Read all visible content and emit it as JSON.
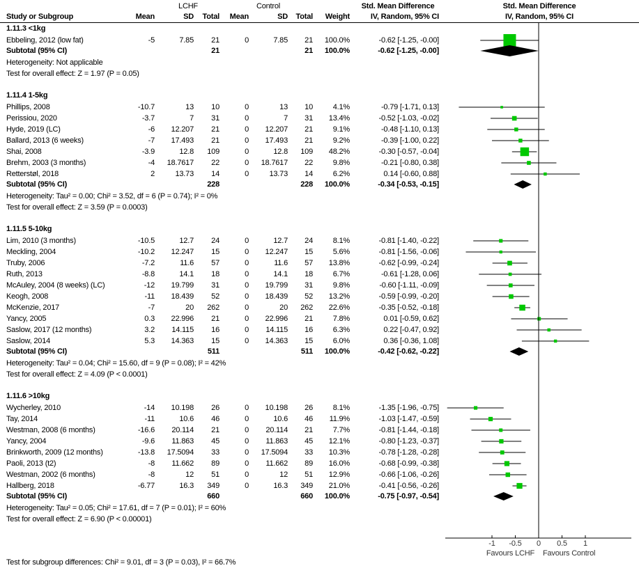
{
  "chart_data": {
    "type": "forest",
    "headers": {
      "lchf": "LCHF",
      "control": "Control",
      "smd_text": "Std. Mean Difference",
      "smd_method_text": "IV, Random, 95% CI",
      "smd_plot": "Std. Mean Difference",
      "smd_method_plot": "IV, Random, 95% CI",
      "study": "Study or Subgroup",
      "mean": "Mean",
      "sd": "SD",
      "total": "Total",
      "mean2": "Mean",
      "sd2": "SD",
      "total2": "Total",
      "weight": "Weight"
    },
    "groups": [
      {
        "title": "1.11.3 <1kg",
        "studies": [
          {
            "name": "Ebbeling, 2012 (low fat)",
            "m1": "-5",
            "sd1": "7.85",
            "n1": "21",
            "m2": "0",
            "sd2": "7.85",
            "n2": "21",
            "weight": "100.0%",
            "ci": "-0.62 [-1.25, -0.00]",
            "est": -0.62,
            "lo": -1.25,
            "hi": 0.0,
            "w": 100
          }
        ],
        "subtotal": {
          "label": "Subtotal (95% CI)",
          "n1": "21",
          "n2": "21",
          "weight": "100.0%",
          "ci": "-0.62 [-1.25, -0.00]",
          "est": -0.62,
          "lo": -1.25,
          "hi": 0.0
        },
        "heterogeneity": "Heterogeneity: Not applicable",
        "overall": "Test for overall effect: Z = 1.97 (P = 0.05)"
      },
      {
        "title": "1.11.4 1-5kg",
        "studies": [
          {
            "name": "Phillips, 2008",
            "m1": "-10.7",
            "sd1": "13",
            "n1": "10",
            "m2": "0",
            "sd2": "13",
            "n2": "10",
            "weight": "4.1%",
            "ci": "-0.79 [-1.71, 0.13]",
            "est": -0.79,
            "lo": -1.71,
            "hi": 0.13,
            "w": 4.1
          },
          {
            "name": "Perissiou, 2020",
            "m1": "-3.7",
            "sd1": "7",
            "n1": "31",
            "m2": "0",
            "sd2": "7",
            "n2": "31",
            "weight": "13.4%",
            "ci": "-0.52 [-1.03, -0.02]",
            "est": -0.52,
            "lo": -1.03,
            "hi": -0.02,
            "w": 13.4
          },
          {
            "name": "Hyde, 2019 (LC)",
            "m1": "-6",
            "sd1": "12.207",
            "n1": "21",
            "m2": "0",
            "sd2": "12.207",
            "n2": "21",
            "weight": "9.1%",
            "ci": "-0.48 [-1.10, 0.13]",
            "est": -0.48,
            "lo": -1.1,
            "hi": 0.13,
            "w": 9.1
          },
          {
            "name": "Ballard, 2013 (6 weeks)",
            "m1": "-7",
            "sd1": "17.493",
            "n1": "21",
            "m2": "0",
            "sd2": "17.493",
            "n2": "21",
            "weight": "9.2%",
            "ci": "-0.39 [-1.00, 0.22]",
            "est": -0.39,
            "lo": -1.0,
            "hi": 0.22,
            "w": 9.2
          },
          {
            "name": "Shai, 2008",
            "m1": "-3.9",
            "sd1": "12.8",
            "n1": "109",
            "m2": "0",
            "sd2": "12.8",
            "n2": "109",
            "weight": "48.2%",
            "ci": "-0.30 [-0.57, -0.04]",
            "est": -0.3,
            "lo": -0.57,
            "hi": -0.04,
            "w": 48.2
          },
          {
            "name": "Brehm, 2003 (3 months)",
            "m1": "-4",
            "sd1": "18.7617",
            "n1": "22",
            "m2": "0",
            "sd2": "18.7617",
            "n2": "22",
            "weight": "9.8%",
            "ci": "-0.21 [-0.80, 0.38]",
            "est": -0.21,
            "lo": -0.8,
            "hi": 0.38,
            "w": 9.8
          },
          {
            "name": "Retterstøl, 2018",
            "m1": "2",
            "sd1": "13.73",
            "n1": "14",
            "m2": "0",
            "sd2": "13.73",
            "n2": "14",
            "weight": "6.2%",
            "ci": "0.14 [-0.60, 0.88]",
            "est": 0.14,
            "lo": -0.6,
            "hi": 0.88,
            "w": 6.2
          }
        ],
        "subtotal": {
          "label": "Subtotal (95% CI)",
          "n1": "228",
          "n2": "228",
          "weight": "100.0%",
          "ci": "-0.34 [-0.53, -0.15]",
          "est": -0.34,
          "lo": -0.53,
          "hi": -0.15
        },
        "heterogeneity": "Heterogeneity: Tau² = 0.00; Chi² = 3.52, df = 6 (P = 0.74); I² = 0%",
        "overall": "Test for overall effect: Z = 3.59 (P = 0.0003)"
      },
      {
        "title": "1.11.5 5-10kg",
        "studies": [
          {
            "name": "Lim, 2010 (3 months)",
            "m1": "-10.5",
            "sd1": "12.7",
            "n1": "24",
            "m2": "0",
            "sd2": "12.7",
            "n2": "24",
            "weight": "8.1%",
            "ci": "-0.81 [-1.40, -0.22]",
            "est": -0.81,
            "lo": -1.4,
            "hi": -0.22,
            "w": 8.1
          },
          {
            "name": "Meckling, 2004",
            "m1": "-10.2",
            "sd1": "12.247",
            "n1": "15",
            "m2": "0",
            "sd2": "12.247",
            "n2": "15",
            "weight": "5.6%",
            "ci": "-0.81 [-1.56, -0.06]",
            "est": -0.81,
            "lo": -1.56,
            "hi": -0.06,
            "w": 5.6
          },
          {
            "name": "Truby, 2006",
            "m1": "-7.2",
            "sd1": "11.6",
            "n1": "57",
            "m2": "0",
            "sd2": "11.6",
            "n2": "57",
            "weight": "13.8%",
            "ci": "-0.62 [-0.99, -0.24]",
            "est": -0.62,
            "lo": -0.99,
            "hi": -0.24,
            "w": 13.8
          },
          {
            "name": "Ruth, 2013",
            "m1": "-8.8",
            "sd1": "14.1",
            "n1": "18",
            "m2": "0",
            "sd2": "14.1",
            "n2": "18",
            "weight": "6.7%",
            "ci": "-0.61 [-1.28, 0.06]",
            "est": -0.61,
            "lo": -1.28,
            "hi": 0.06,
            "w": 6.7
          },
          {
            "name": "McAuley, 2004 (8 weeks) (LC)",
            "m1": "-12",
            "sd1": "19.799",
            "n1": "31",
            "m2": "0",
            "sd2": "19.799",
            "n2": "31",
            "weight": "9.8%",
            "ci": "-0.60 [-1.11, -0.09]",
            "est": -0.6,
            "lo": -1.11,
            "hi": -0.09,
            "w": 9.8
          },
          {
            "name": "Keogh, 2008",
            "m1": "-11",
            "sd1": "18.439",
            "n1": "52",
            "m2": "0",
            "sd2": "18.439",
            "n2": "52",
            "weight": "13.2%",
            "ci": "-0.59 [-0.99, -0.20]",
            "est": -0.59,
            "lo": -0.99,
            "hi": -0.2,
            "w": 13.2
          },
          {
            "name": "McKenzie, 2017",
            "m1": "-7",
            "sd1": "20",
            "n1": "262",
            "m2": "0",
            "sd2": "20",
            "n2": "262",
            "weight": "22.6%",
            "ci": "-0.35 [-0.52, -0.18]",
            "est": -0.35,
            "lo": -0.52,
            "hi": -0.18,
            "w": 22.6
          },
          {
            "name": "Yancy, 2005",
            "m1": "0.3",
            "sd1": "22.996",
            "n1": "21",
            "m2": "0",
            "sd2": "22.996",
            "n2": "21",
            "weight": "7.8%",
            "ci": "0.01 [-0.59, 0.62]",
            "est": 0.01,
            "lo": -0.59,
            "hi": 0.62,
            "w": 7.8
          },
          {
            "name": "Saslow, 2017 (12 months)",
            "m1": "3.2",
            "sd1": "14.115",
            "n1": "16",
            "m2": "0",
            "sd2": "14.115",
            "n2": "16",
            "weight": "6.3%",
            "ci": "0.22 [-0.47, 0.92]",
            "est": 0.22,
            "lo": -0.47,
            "hi": 0.92,
            "w": 6.3
          },
          {
            "name": "Saslow, 2014",
            "m1": "5.3",
            "sd1": "14.363",
            "n1": "15",
            "m2": "0",
            "sd2": "14.363",
            "n2": "15",
            "weight": "6.0%",
            "ci": "0.36 [-0.36, 1.08]",
            "est": 0.36,
            "lo": -0.36,
            "hi": 1.08,
            "w": 6.0
          }
        ],
        "subtotal": {
          "label": "Subtotal (95% CI)",
          "n1": "511",
          "n2": "511",
          "weight": "100.0%",
          "ci": "-0.42 [-0.62, -0.22]",
          "est": -0.42,
          "lo": -0.62,
          "hi": -0.22
        },
        "heterogeneity": "Heterogeneity: Tau² = 0.04; Chi² = 15.60, df = 9 (P = 0.08); I² = 42%",
        "overall": "Test for overall effect: Z = 4.09 (P < 0.0001)"
      },
      {
        "title": "1.11.6 >10kg",
        "studies": [
          {
            "name": "Wycherley, 2010",
            "m1": "-14",
            "sd1": "10.198",
            "n1": "26",
            "m2": "0",
            "sd2": "10.198",
            "n2": "26",
            "weight": "8.1%",
            "ci": "-1.35 [-1.96, -0.75]",
            "est": -1.35,
            "lo": -1.96,
            "hi": -0.75,
            "w": 8.1
          },
          {
            "name": "Tay, 2014",
            "m1": "-11",
            "sd1": "10.6",
            "n1": "46",
            "m2": "0",
            "sd2": "10.6",
            "n2": "46",
            "weight": "11.9%",
            "ci": "-1.03 [-1.47, -0.59]",
            "est": -1.03,
            "lo": -1.47,
            "hi": -0.59,
            "w": 11.9
          },
          {
            "name": "Westman, 2008 (6 months)",
            "m1": "-16.6",
            "sd1": "20.114",
            "n1": "21",
            "m2": "0",
            "sd2": "20.114",
            "n2": "21",
            "weight": "7.7%",
            "ci": "-0.81 [-1.44, -0.18]",
            "est": -0.81,
            "lo": -1.44,
            "hi": -0.18,
            "w": 7.7
          },
          {
            "name": "Yancy, 2004",
            "m1": "-9.6",
            "sd1": "11.863",
            "n1": "45",
            "m2": "0",
            "sd2": "11.863",
            "n2": "45",
            "weight": "12.1%",
            "ci": "-0.80 [-1.23, -0.37]",
            "est": -0.8,
            "lo": -1.23,
            "hi": -0.37,
            "w": 12.1
          },
          {
            "name": "Brinkworth, 2009 (12 months)",
            "m1": "-13.8",
            "sd1": "17.5094",
            "n1": "33",
            "m2": "0",
            "sd2": "17.5094",
            "n2": "33",
            "weight": "10.3%",
            "ci": "-0.78 [-1.28, -0.28]",
            "est": -0.78,
            "lo": -1.28,
            "hi": -0.28,
            "w": 10.3
          },
          {
            "name": "Paoli, 2013 (t2)",
            "m1": "-8",
            "sd1": "11.662",
            "n1": "89",
            "m2": "0",
            "sd2": "11.662",
            "n2": "89",
            "weight": "16.0%",
            "ci": "-0.68 [-0.99, -0.38]",
            "est": -0.68,
            "lo": -0.99,
            "hi": -0.38,
            "w": 16.0
          },
          {
            "name": "Westman, 2002 (6 months)",
            "m1": "-8",
            "sd1": "12",
            "n1": "51",
            "m2": "0",
            "sd2": "12",
            "n2": "51",
            "weight": "12.9%",
            "ci": "-0.66 [-1.06, -0.26]",
            "est": -0.66,
            "lo": -1.06,
            "hi": -0.26,
            "w": 12.9
          },
          {
            "name": "Hallberg, 2018",
            "m1": "-6.77",
            "sd1": "16.3",
            "n1": "349",
            "m2": "0",
            "sd2": "16.3",
            "n2": "349",
            "weight": "21.0%",
            "ci": "-0.41 [-0.56, -0.26]",
            "est": -0.41,
            "lo": -0.56,
            "hi": -0.26,
            "w": 21.0
          }
        ],
        "subtotal": {
          "label": "Subtotal (95% CI)",
          "n1": "660",
          "n2": "660",
          "weight": "100.0%",
          "ci": "-0.75 [-0.97, -0.54]",
          "est": -0.75,
          "lo": -0.97,
          "hi": -0.54
        },
        "heterogeneity": "Heterogeneity: Tau² = 0.05; Chi² = 17.61, df = 7 (P = 0.01); I² = 60%",
        "overall": "Test for overall effect: Z = 6.90 (P < 0.00001)"
      }
    ],
    "axis": {
      "xlim": [
        -2,
        2
      ],
      "ticks": [
        -1,
        -0.5,
        0,
        0.5,
        1
      ],
      "tick_labels": [
        "-1",
        "-0.5",
        "0",
        "0.5",
        "1"
      ],
      "left_label": "Favours LCHF",
      "right_label": "Favours Control"
    },
    "subgroup_test": "Test for subgroup differences: Chi² = 9.01, df = 3 (P = 0.03), I² = 66.7%",
    "colors": {
      "square": "#00c800",
      "diamond": "#000000",
      "line": "#000000"
    }
  }
}
